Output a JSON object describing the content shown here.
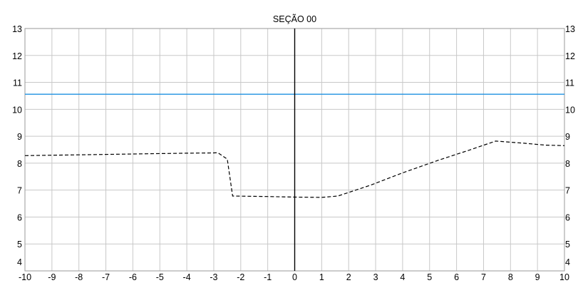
{
  "chart_data": {
    "type": "line",
    "title": "SEÇÃO 00",
    "xlabel": "",
    "ylabel": "",
    "xlim": [
      -10,
      10
    ],
    "ylim": [
      4,
      13
    ],
    "x_ticks": [
      -10,
      -9,
      -8,
      -7,
      -6,
      -5,
      -4,
      -3,
      -2,
      -1,
      0,
      1,
      2,
      3,
      4,
      5,
      6,
      7,
      8,
      9,
      10
    ],
    "y_ticks": [
      4,
      5,
      6,
      7,
      8,
      9,
      10,
      11,
      12,
      13
    ],
    "grid": true,
    "series": [
      {
        "name": "",
        "style": "dashed",
        "color": "#000000",
        "points": [
          [
            -10,
            8.28
          ],
          [
            -8,
            8.31
          ],
          [
            -6,
            8.34
          ],
          [
            -4,
            8.37
          ],
          [
            -3,
            8.38
          ],
          [
            -2.85,
            8.39
          ],
          [
            -2.5,
            8.15
          ],
          [
            -2.3,
            6.78
          ],
          [
            -1,
            6.76
          ],
          [
            0,
            6.74
          ],
          [
            1,
            6.73
          ],
          [
            1.6,
            6.78
          ],
          [
            2.8,
            7.18
          ],
          [
            4,
            7.64
          ],
          [
            5.3,
            8.1
          ],
          [
            6.4,
            8.46
          ],
          [
            7.45,
            8.82
          ],
          [
            8.5,
            8.74
          ],
          [
            9.3,
            8.67
          ],
          [
            10,
            8.65
          ]
        ]
      },
      {
        "name": "",
        "style": "solid",
        "color": "#1e90e0",
        "points": [
          [
            -10,
            10.56
          ],
          [
            10,
            10.56
          ]
        ]
      },
      {
        "name": "",
        "style": "solid",
        "color": "#000000",
        "points": [
          [
            0,
            4
          ],
          [
            0,
            13
          ]
        ]
      }
    ]
  }
}
